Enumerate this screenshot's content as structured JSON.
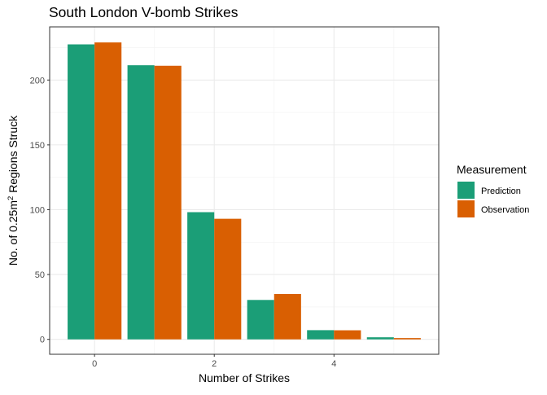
{
  "chart_data": {
    "type": "bar",
    "title": "South London V-bomb Strikes",
    "xlabel": "Number of Strikes",
    "ylabel": {
      "prefix": "No. of 0.25m",
      "superscript": "2",
      "suffix": " Regions Struck"
    },
    "x": [
      0,
      1,
      2,
      3,
      4,
      5
    ],
    "x_tick_labels": [
      {
        "value": 0,
        "label": "0"
      },
      {
        "value": 2,
        "label": "2"
      },
      {
        "value": 4,
        "label": "4"
      }
    ],
    "y_ticks": [
      0,
      50,
      100,
      150,
      200
    ],
    "xlim": [
      -0.75,
      5.75
    ],
    "ylim": [
      -11.5,
      241
    ],
    "grid": true,
    "legend": {
      "title": "Measurement",
      "placement": "right"
    },
    "series": [
      {
        "name": "Prediction",
        "color": "#1B9E77",
        "values": [
          227.5,
          211.4,
          98.1,
          30.4,
          7.1,
          1.6
        ]
      },
      {
        "name": "Observation",
        "color": "#D95F02",
        "values": [
          229,
          211,
          93,
          35,
          7,
          1
        ]
      }
    ]
  }
}
